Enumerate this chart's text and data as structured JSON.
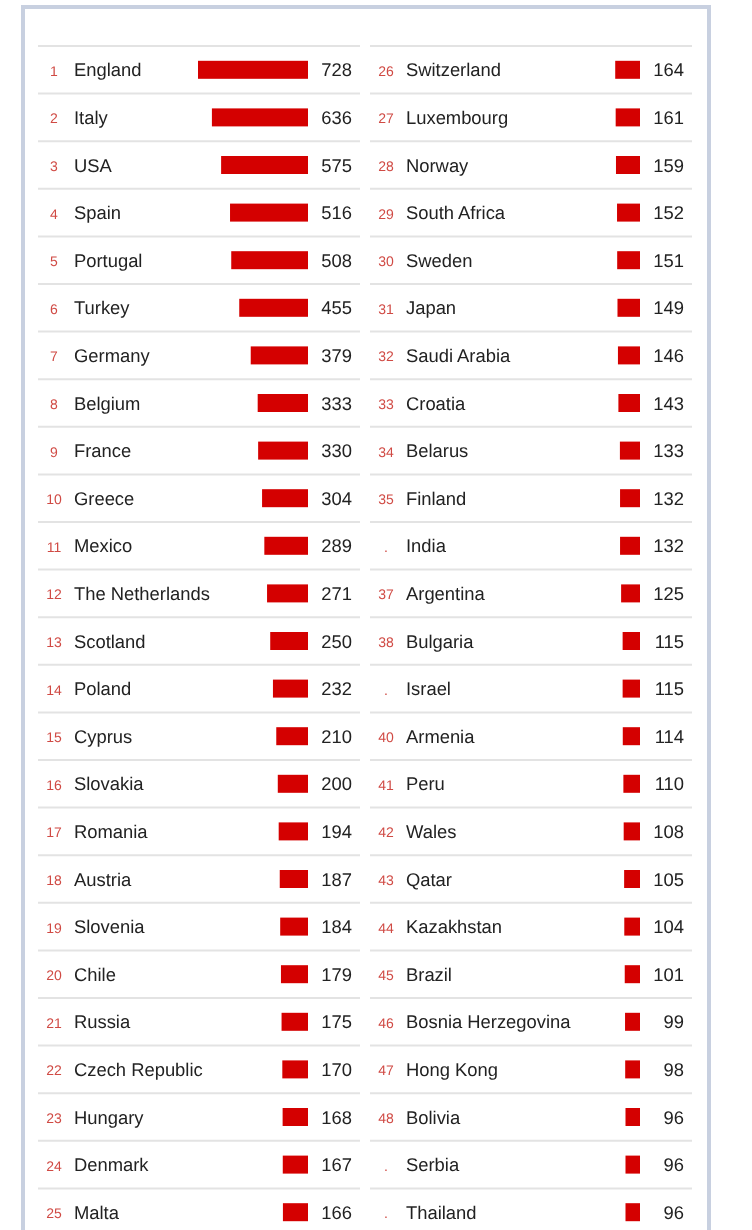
{
  "chart_data": [
    {
      "type": "bar",
      "orientation": "horizontal",
      "data_labels": true,
      "grid": "y",
      "color": "#d40000",
      "categories": [
        "England",
        "Italy",
        "USA",
        "Spain",
        "Portugal",
        "Turkey",
        "Germany",
        "Belgium",
        "France",
        "Greece",
        "Mexico",
        "The Netherlands",
        "Scotland",
        "Poland",
        "Cyprus",
        "Slovakia",
        "Romania",
        "Austria",
        "Slovenia",
        "Chile",
        "Russia",
        "Czech Republic",
        "Hungary",
        "Denmark",
        "Malta"
      ],
      "values": [
        728,
        636,
        575,
        516,
        508,
        455,
        379,
        333,
        330,
        304,
        289,
        271,
        250,
        232,
        210,
        200,
        194,
        187,
        184,
        179,
        175,
        170,
        168,
        167,
        166
      ],
      "annotations": [
        "1",
        "2",
        "3",
        "4",
        "5",
        "6",
        "7",
        "8",
        "9",
        "10",
        "11",
        "12",
        "13",
        "14",
        "15",
        "16",
        "17",
        "18",
        "19",
        "20",
        "21",
        "22",
        "23",
        "24",
        "25"
      ]
    },
    {
      "type": "bar",
      "orientation": "horizontal",
      "data_labels": true,
      "grid": "y",
      "color": "#d40000",
      "categories": [
        "Switzerland",
        "Luxembourg",
        "Norway",
        "South Africa",
        "Sweden",
        "Japan",
        "Saudi Arabia",
        "Croatia",
        "Belarus",
        "Finland",
        "India",
        "Argentina",
        "Bulgaria",
        "Israel",
        "Armenia",
        "Peru",
        "Wales",
        "Qatar",
        "Kazakhstan",
        "Brazil",
        "Bosnia Herzegovina",
        "Hong Kong",
        "Bolivia",
        "Serbia",
        "Thailand"
      ],
      "values": [
        164,
        161,
        159,
        152,
        151,
        149,
        146,
        143,
        133,
        132,
        132,
        125,
        115,
        115,
        114,
        110,
        108,
        105,
        104,
        101,
        99,
        98,
        96,
        96,
        96
      ],
      "annotations": [
        "26",
        "27",
        "28",
        "29",
        "30",
        "31",
        "32",
        "33",
        "34",
        "35",
        ".",
        "37",
        "38",
        ".",
        "40",
        "41",
        "42",
        "43",
        "44",
        "45",
        "46",
        "47",
        "48",
        ".",
        "."
      ]
    }
  ]
}
